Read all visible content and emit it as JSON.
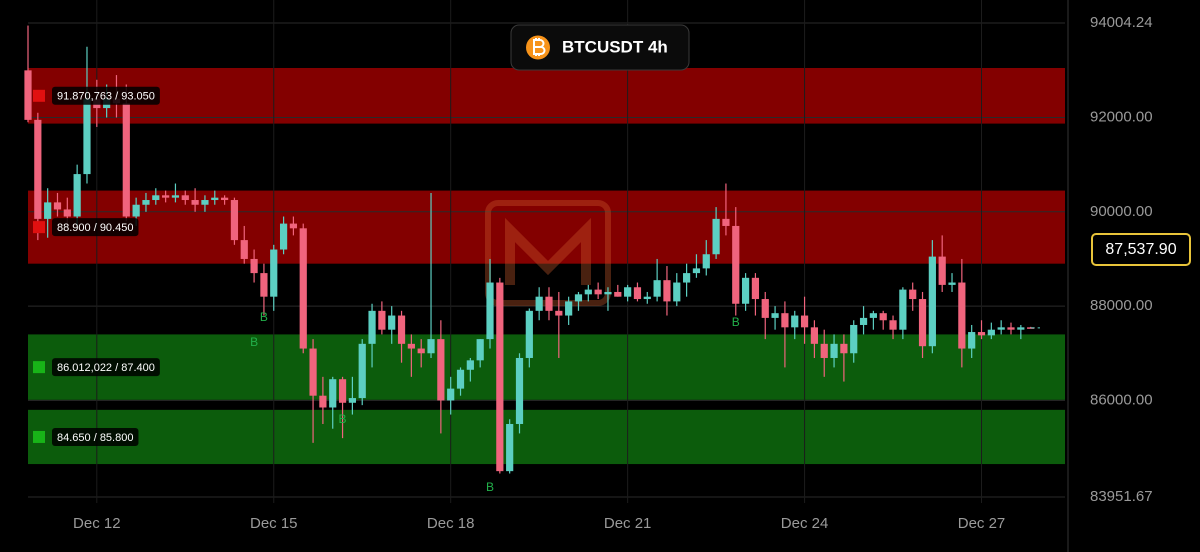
{
  "chart_data": {
    "type": "candlestick",
    "title": "BTCUSDT 4h",
    "categories": [
      null,
      null,
      null,
      null,
      null,
      null,
      null,
      "Dec 12",
      null,
      null,
      null,
      null,
      null,
      null,
      null,
      null,
      null,
      null,
      null,
      null,
      null,
      null,
      null,
      null,
      null,
      "Dec 15",
      null,
      null,
      null,
      null,
      null,
      null,
      null,
      null,
      null,
      null,
      null,
      null,
      null,
      null,
      null,
      null,
      null,
      "Dec 18",
      null,
      null,
      null,
      null,
      null,
      null,
      null,
      null,
      null,
      null,
      null,
      null,
      null,
      null,
      null,
      null,
      null,
      "Dec 21",
      null,
      null,
      null,
      null,
      null,
      null,
      null,
      null,
      null,
      null,
      null,
      null,
      null,
      null,
      null,
      null,
      null,
      "Dec 24",
      null,
      null,
      null,
      null,
      null,
      null,
      null,
      null,
      null,
      null,
      null,
      null,
      null,
      null,
      null,
      null,
      null,
      "Dec 27",
      null,
      null,
      null,
      null,
      null
    ],
    "open": [
      93000,
      91950,
      89850,
      90200,
      90050,
      89900,
      90800,
      92400,
      92200,
      92400,
      92300,
      89900,
      90150,
      90250,
      90350,
      90300,
      90350,
      90250,
      90150,
      90250,
      90300,
      90250,
      89400,
      89000,
      88700,
      88200,
      89200,
      89750,
      89650,
      87100,
      86100,
      85850,
      86450,
      85950,
      86050,
      87200,
      87900,
      87500,
      87800,
      87200,
      87100,
      87000,
      87300,
      86000,
      86250,
      86650,
      86850,
      87300,
      88500,
      84500,
      85500,
      86900,
      87900,
      88200,
      87900,
      87800,
      88100,
      88250,
      88350,
      88250,
      88300,
      88200,
      88400,
      88150,
      88200,
      88550,
      88100,
      88500,
      88700,
      88800,
      89100,
      89850,
      89700,
      88050,
      88600,
      88150,
      87750,
      87850,
      87550,
      87800,
      87550,
      87200,
      86900,
      87200,
      87000,
      87600,
      87750,
      87850,
      87700,
      87500,
      88350,
      88150,
      87150,
      89050,
      88450,
      88500,
      87100,
      87450,
      87380,
      87500,
      87550,
      87500,
      87550
    ],
    "high": [
      93950,
      92100,
      90500,
      90400,
      90300,
      91000,
      93500,
      92800,
      92700,
      92900,
      92700,
      90300,
      90400,
      90500,
      90450,
      90600,
      90450,
      90500,
      90350,
      90450,
      90350,
      90300,
      89700,
      89200,
      88900,
      89300,
      89900,
      89900,
      89750,
      87300,
      86500,
      86500,
      86500,
      86500,
      87300,
      88050,
      88100,
      88000,
      87900,
      87400,
      87300,
      90400,
      87700,
      86500,
      86700,
      86900,
      87300,
      89000,
      88600,
      85600,
      87000,
      87950,
      88400,
      88400,
      88300,
      88200,
      88300,
      88450,
      88500,
      88400,
      88450,
      88450,
      88500,
      88300,
      89000,
      88850,
      88700,
      88900,
      89100,
      89400,
      90100,
      90600,
      90100,
      88700,
      88700,
      88300,
      88000,
      88100,
      87900,
      88200,
      87700,
      87500,
      87400,
      87400,
      87700,
      88000,
      87900,
      87900,
      87800,
      88400,
      88500,
      88300,
      89400,
      89500,
      88700,
      89000,
      87600,
      87700,
      87650,
      87700,
      87650,
      87600,
      87560
    ],
    "low": [
      91900,
      89400,
      89450,
      89900,
      89700,
      89700,
      90600,
      91800,
      92000,
      92000,
      89800,
      89700,
      90000,
      90150,
      90200,
      90200,
      90150,
      90000,
      90000,
      90150,
      90150,
      89300,
      88900,
      88500,
      87800,
      87900,
      89100,
      89500,
      87000,
      85100,
      85500,
      85400,
      85200,
      85700,
      85900,
      86700,
      87400,
      87200,
      86800,
      86500,
      86700,
      86900,
      85300,
      85700,
      86100,
      86400,
      86700,
      87100,
      84450,
      84450,
      85300,
      86700,
      87700,
      87700,
      86900,
      87600,
      87900,
      88100,
      88150,
      87900,
      88200,
      88100,
      88100,
      88050,
      88100,
      87800,
      88000,
      88200,
      88600,
      88650,
      89000,
      89500,
      87800,
      87900,
      87800,
      87300,
      87500,
      86700,
      87300,
      87200,
      86900,
      86500,
      86700,
      86400,
      86800,
      87400,
      87500,
      87500,
      87300,
      87300,
      87900,
      86900,
      87000,
      88300,
      88300,
      86700,
      86900,
      87300,
      87300,
      87400,
      87400,
      87300,
      87530
    ],
    "close": [
      91950,
      89850,
      90200,
      90050,
      89900,
      90800,
      92400,
      92200,
      92400,
      92300,
      89900,
      90150,
      90250,
      90350,
      90300,
      90350,
      90250,
      90150,
      90250,
      90300,
      90250,
      89400,
      89000,
      88700,
      88200,
      89200,
      89750,
      89650,
      87100,
      86100,
      85850,
      86450,
      85950,
      86050,
      87200,
      87900,
      87500,
      87800,
      87200,
      87100,
      87000,
      87300,
      86000,
      86250,
      86650,
      86850,
      87300,
      88500,
      84500,
      85500,
      86900,
      87900,
      88200,
      87900,
      87800,
      88100,
      88250,
      88350,
      88250,
      88300,
      88200,
      88400,
      88150,
      88200,
      88550,
      88100,
      88500,
      88700,
      88800,
      89100,
      89850,
      89700,
      88050,
      88600,
      88150,
      87750,
      87850,
      87550,
      87800,
      87550,
      87200,
      86900,
      87200,
      87000,
      87600,
      87750,
      87850,
      87700,
      87500,
      88350,
      88150,
      87150,
      89050,
      88450,
      88500,
      87100,
      87450,
      87380,
      87500,
      87550,
      87500,
      87550,
      87537.9
    ],
    "up_color": "#5ccfc2",
    "down_color": "#f0647d",
    "ylim": [
      83951.67,
      94004.24
    ],
    "yticks": [
      83951.67,
      {
        "value": 86000,
        "label": "86000.00"
      },
      {
        "value": 88000,
        "label": "88000.00"
      },
      {
        "value": 90000,
        "label": "90000.00"
      },
      {
        "value": 92000,
        "label": "92000.00"
      },
      94004.24
    ],
    "grid": true,
    "last_price": 87537.9,
    "last_price_label": "87,537.90",
    "zones": [
      {
        "label": "91.870,763 / 93.050",
        "low": 91870.763,
        "high": 93050,
        "color": "#8e0000"
      },
      {
        "label": "88.900 / 90.450",
        "low": 88900,
        "high": 90450,
        "color": "#8e0000"
      },
      {
        "label": "86.012,022 / 87.400",
        "low": 86012.022,
        "high": 87400,
        "color": "#0d640d"
      },
      {
        "label": "84.650 / 85.800",
        "low": 84650,
        "high": 85800,
        "color": "#0d640d"
      }
    ],
    "signals": [
      "B",
      "B",
      "B",
      "B",
      "B"
    ]
  }
}
